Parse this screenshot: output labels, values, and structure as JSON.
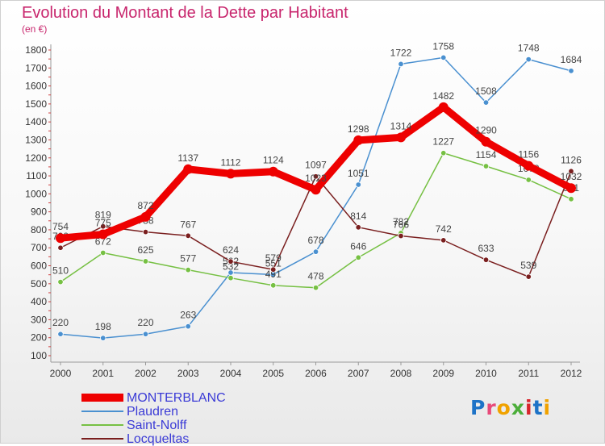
{
  "title": "Evolution du Montant de la Dette par Habitant",
  "unit_label": "(en €)",
  "logo": {
    "text": "Proxiti",
    "letter_colors": [
      "#1e73c7",
      "#e84a7a",
      "#f0a200",
      "#4cae3a",
      "#d8262c",
      "#1e73c7",
      "#f0a200"
    ]
  },
  "chart_data": {
    "type": "line",
    "title": "Evolution du Montant de la Dette par Habitant",
    "ylabel": "(en €)",
    "xlabel": "",
    "ylim": [
      100,
      1800
    ],
    "y_ticks": [
      100,
      200,
      300,
      400,
      500,
      600,
      700,
      800,
      900,
      1000,
      1100,
      1200,
      1300,
      1400,
      1500,
      1600,
      1700,
      1800
    ],
    "x": [
      "2000",
      "2001",
      "2002",
      "2003",
      "2004",
      "2005",
      "2006",
      "2007",
      "2008",
      "2009",
      "2010",
      "2011",
      "2012"
    ],
    "grid": false,
    "legend_position": "bottom-left",
    "series": [
      {
        "name": "Plaudren",
        "color": "#4a90d0",
        "values": [
          220,
          198,
          220,
          263,
          562,
          551,
          678,
          1051,
          1722,
          1758,
          1508,
          1748,
          1684
        ],
        "labels": [
          "220",
          "198",
          "220",
          "263",
          "562",
          "551",
          "678",
          "1051",
          "1722",
          "1758",
          "1508",
          "1748",
          "1684"
        ]
      },
      {
        "name": "Saint-Nolff",
        "color": "#76c043",
        "values": [
          510,
          672,
          625,
          577,
          532,
          491,
          478,
          646,
          782,
          1227,
          1154,
          1078,
          971
        ],
        "labels": [
          "510",
          "672",
          "625",
          "577",
          "532",
          "491",
          "478",
          "646",
          "782",
          "1227",
          "1154",
          "1078",
          "971"
        ]
      },
      {
        "name": "Locqueltas",
        "color": "#7a1f1f",
        "values": [
          700,
          819,
          788,
          767,
          624,
          579,
          1097,
          814,
          766,
          742,
          633,
          539,
          1126
        ],
        "labels": [
          "700",
          "819",
          "788",
          "767",
          "624",
          "579",
          "1097",
          "814",
          "766",
          "742",
          "633",
          "539",
          "1126"
        ]
      },
      {
        "name": "MONTERBLANC",
        "color": "#ee0000",
        "values": [
          754,
          775,
          872,
          1137,
          1112,
          1124,
          1023,
          1298,
          1314,
          1482,
          1290,
          1156,
          1032
        ],
        "labels": [
          "754",
          "775",
          "872",
          "1137",
          "1112",
          "1124",
          "1023",
          "1298",
          "1314",
          "1482",
          "1290",
          "1156",
          "1032"
        ]
      }
    ]
  },
  "legend": [
    {
      "name": "MONTERBLANC",
      "color": "#ee0000"
    },
    {
      "name": "Plaudren",
      "color": "#4a90d0"
    },
    {
      "name": "Saint-Nolff",
      "color": "#76c043"
    },
    {
      "name": "Locqueltas",
      "color": "#7a1f1f"
    }
  ]
}
